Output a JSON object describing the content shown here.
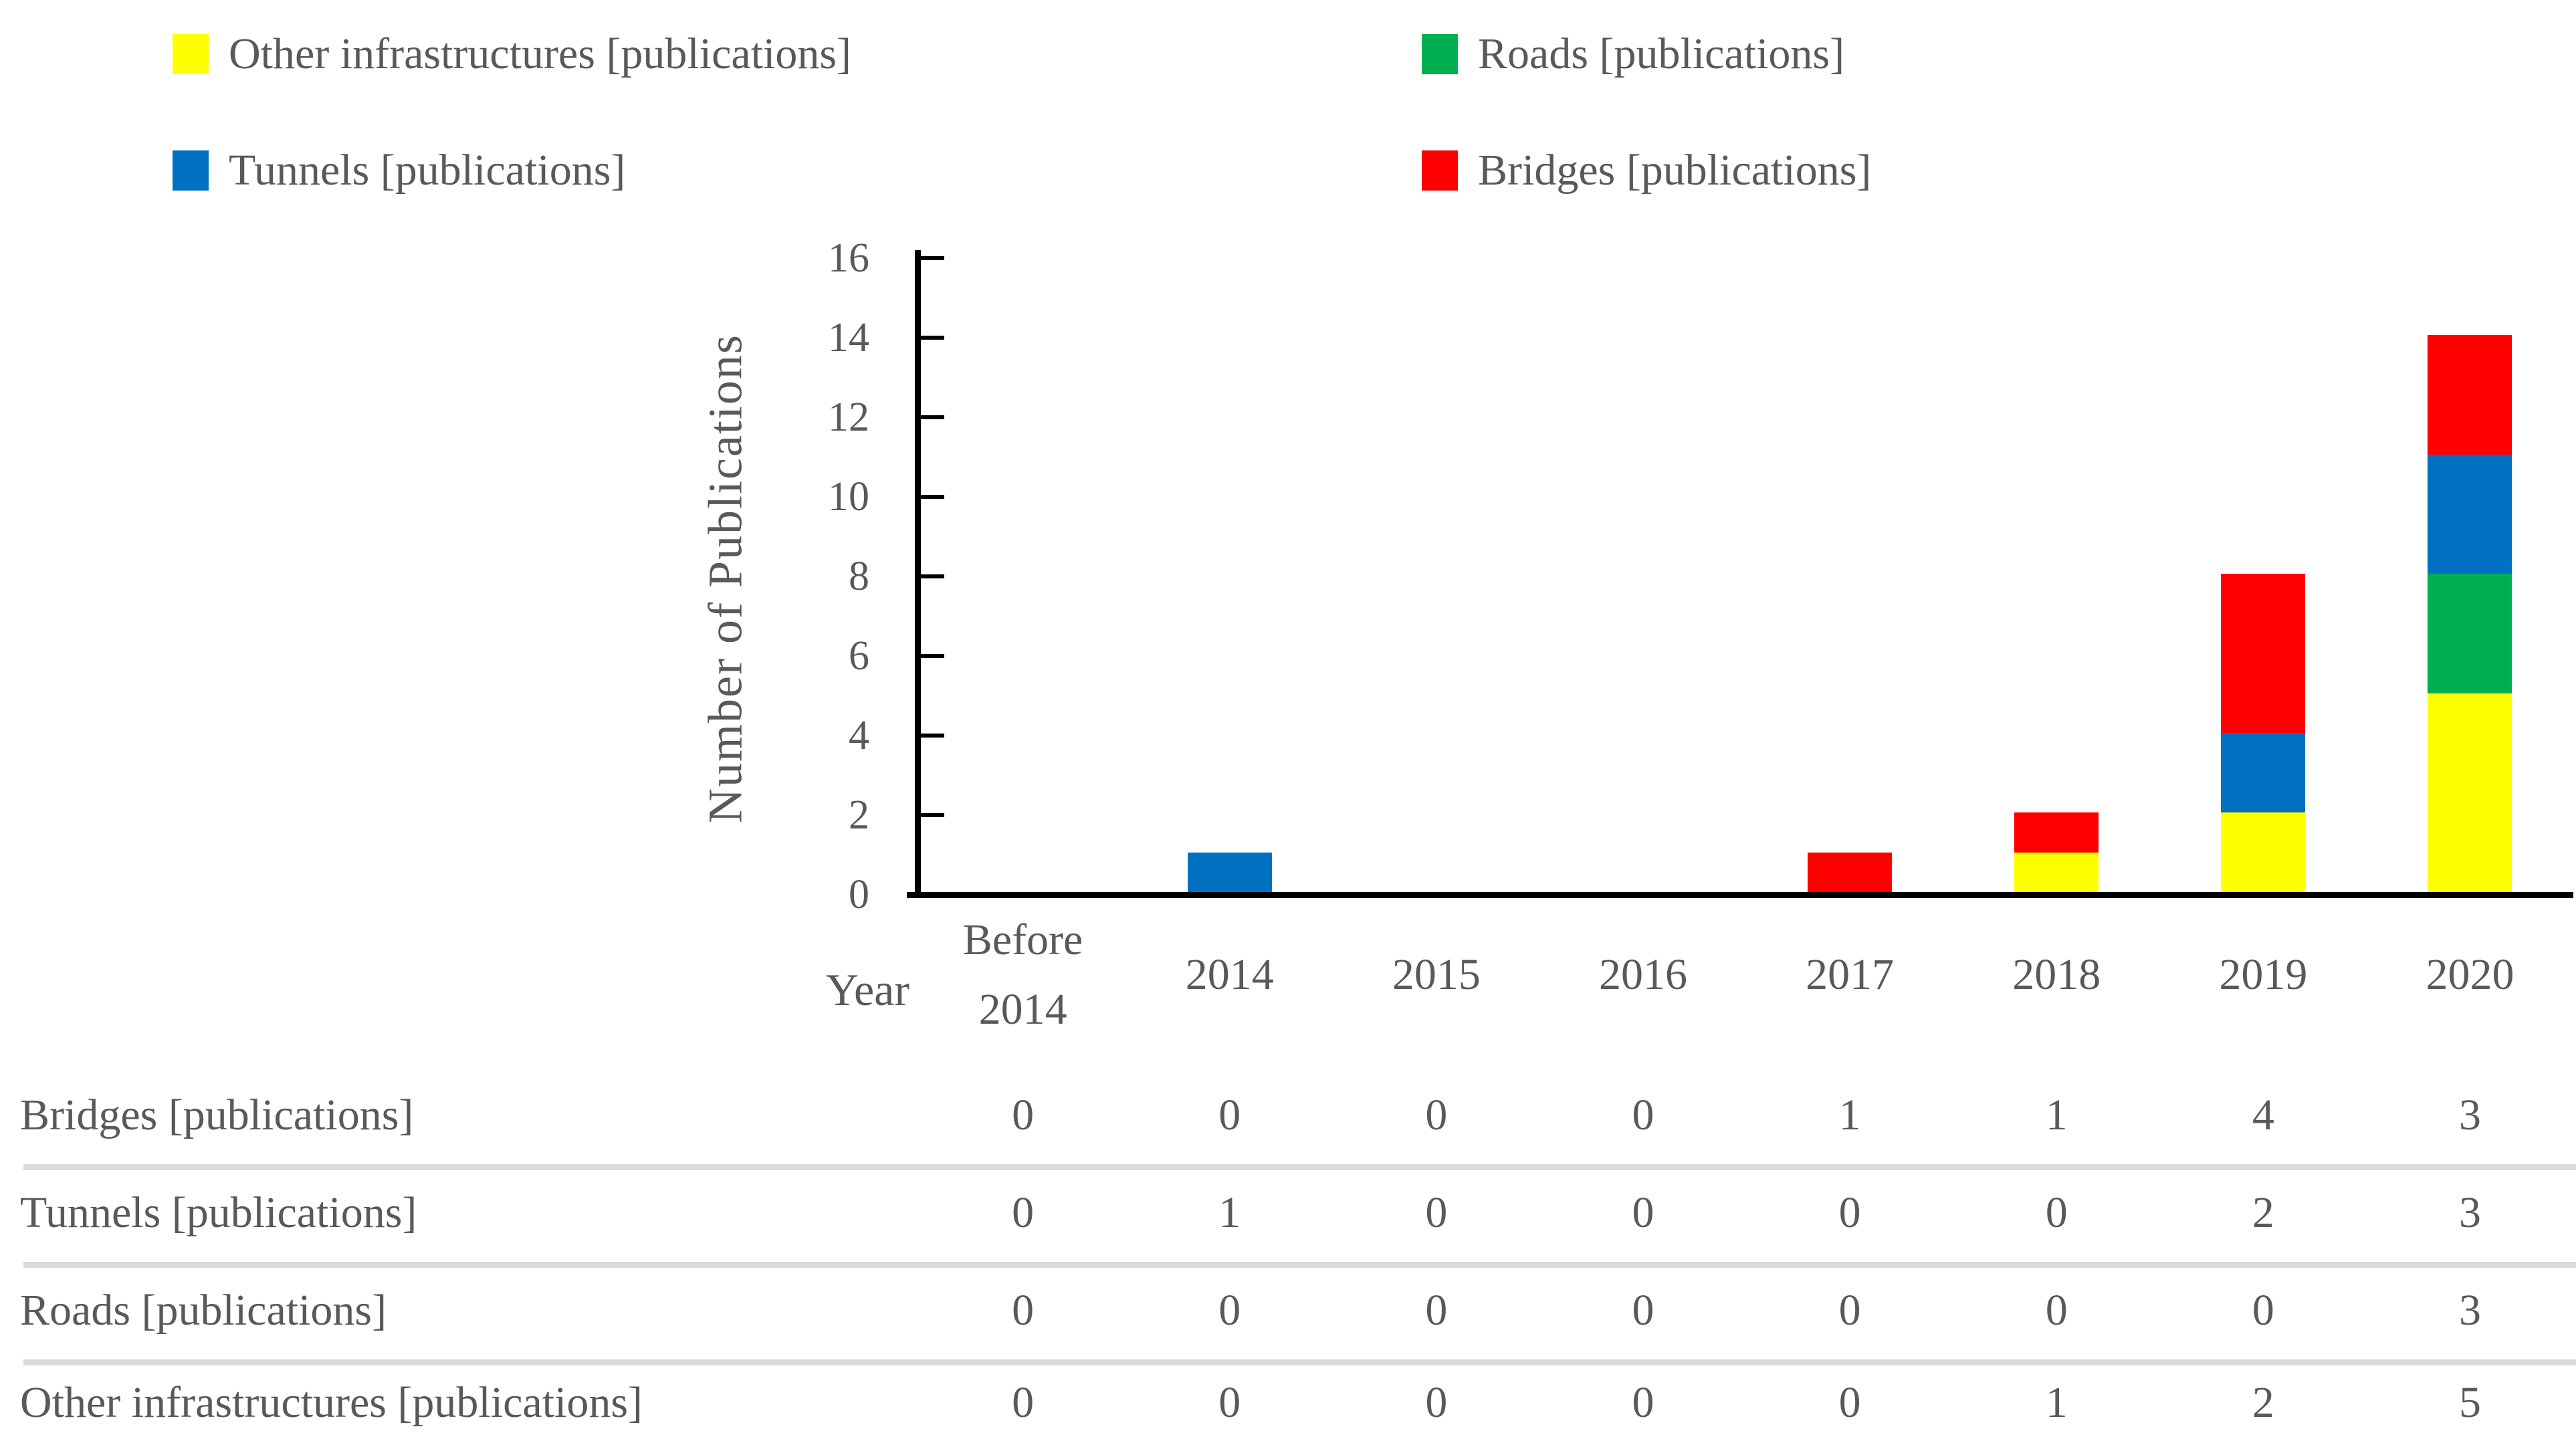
{
  "colors": {
    "text": "#595959",
    "axis": "#000000",
    "separator": "#DBDBDB",
    "background": "#FFFFFF",
    "other_infrastructures": "#FFFF00",
    "roads": "#00B050",
    "tunnels": "#0070C0",
    "bridges": "#FF0000"
  },
  "legend": {
    "items": [
      {
        "label": "Other infrastructures [publications]",
        "color": "#FFFF00"
      },
      {
        "label": "Roads [publications]",
        "color": "#00B050"
      },
      {
        "label": "Tunnels [publications]",
        "color": "#0070C0"
      },
      {
        "label": "Bridges [publications]",
        "color": "#FF0000"
      }
    ]
  },
  "chart_data": {
    "type": "bar",
    "stacked": true,
    "title": "",
    "xlabel": "Year",
    "ylabel": "Number of Publications",
    "categories": [
      "Before 2014",
      "2014",
      "2015",
      "2016",
      "2017",
      "2018",
      "2019",
      "2020"
    ],
    "series": [
      {
        "name": "Other infrastructures [publications]",
        "color": "#FFFF00",
        "values": [
          0,
          0,
          0,
          0,
          0,
          1,
          2,
          5
        ]
      },
      {
        "name": "Roads [publications]",
        "color": "#00B050",
        "values": [
          0,
          0,
          0,
          0,
          0,
          0,
          0,
          3
        ]
      },
      {
        "name": "Tunnels [publications]",
        "color": "#0070C0",
        "values": [
          0,
          1,
          0,
          0,
          0,
          0,
          2,
          3
        ]
      },
      {
        "name": "Bridges [publications]",
        "color": "#FF0000",
        "values": [
          0,
          0,
          0,
          0,
          1,
          1,
          4,
          3
        ]
      }
    ],
    "stack_order_bottom_to_top": [
      "Other infrastructures [publications]",
      "Roads [publications]",
      "Tunnels [publications]",
      "Bridges [publications]"
    ],
    "ylim": [
      0,
      16
    ],
    "ytick_step": 2,
    "ytick_labels": [
      "0",
      "2",
      "4",
      "6",
      "8",
      "10",
      "12",
      "14",
      "16"
    ],
    "grid": false,
    "legend_position": "top"
  },
  "table": {
    "rows": [
      {
        "label": "Bridges [publications]",
        "values": [
          "0",
          "0",
          "0",
          "0",
          "1",
          "1",
          "4",
          "3"
        ]
      },
      {
        "label": "Tunnels [publications]",
        "values": [
          "0",
          "1",
          "0",
          "0",
          "0",
          "0",
          "2",
          "3"
        ]
      },
      {
        "label": "Roads [publications]",
        "values": [
          "0",
          "0",
          "0",
          "0",
          "0",
          "0",
          "0",
          "3"
        ]
      },
      {
        "label": "Other infrastructures [publications]",
        "values": [
          "0",
          "0",
          "0",
          "0",
          "0",
          "1",
          "2",
          "5"
        ]
      }
    ]
  }
}
